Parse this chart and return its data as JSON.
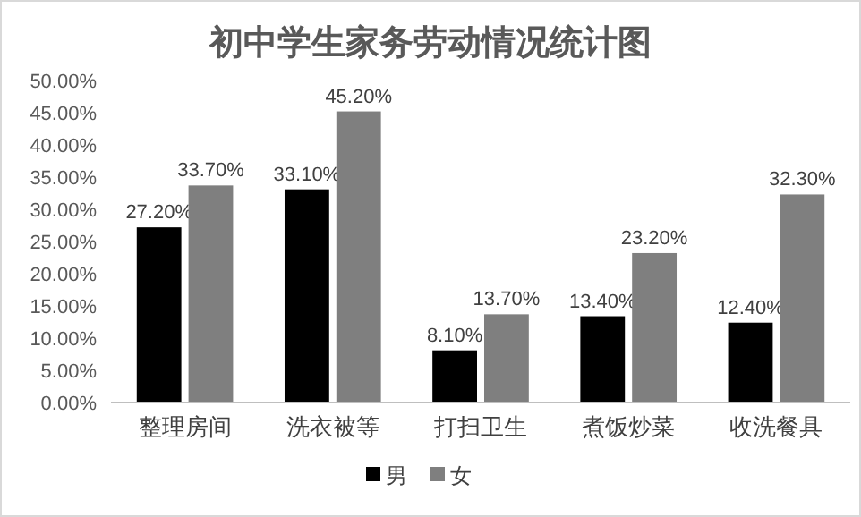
{
  "chart_data": {
    "type": "bar",
    "title": "初中学生家务劳动情况统计图",
    "categories": [
      "整理房间",
      "洗衣被等",
      "打扫卫生",
      "煮饭炒菜",
      "收洗餐具"
    ],
    "series": [
      {
        "name": "男",
        "color": "#000000",
        "values": [
          27.2,
          33.1,
          8.1,
          13.4,
          12.4
        ],
        "value_labels": [
          "27.20%",
          "33.10%",
          "8.10%",
          "13.40%",
          "12.40%"
        ]
      },
      {
        "name": "女",
        "color": "#7f7f7f",
        "values": [
          33.7,
          45.2,
          13.7,
          23.2,
          32.3
        ],
        "value_labels": [
          "33.70%",
          "45.20%",
          "13.70%",
          "23.20%",
          "32.30%"
        ]
      }
    ],
    "ylim": [
      0,
      50
    ],
    "yticks": [
      {
        "value": 0,
        "label": "0.00%"
      },
      {
        "value": 5,
        "label": "5.00%"
      },
      {
        "value": 10,
        "label": "10.00%"
      },
      {
        "value": 15,
        "label": "15.00%"
      },
      {
        "value": 20,
        "label": "20.00%"
      },
      {
        "value": 25,
        "label": "25.00%"
      },
      {
        "value": 30,
        "label": "30.00%"
      },
      {
        "value": 35,
        "label": "35.00%"
      },
      {
        "value": 40,
        "label": "40.00%"
      },
      {
        "value": 45,
        "label": "45.00%"
      },
      {
        "value": 50,
        "label": "50.00%"
      }
    ],
    "grid": false,
    "legend": "bottom"
  }
}
